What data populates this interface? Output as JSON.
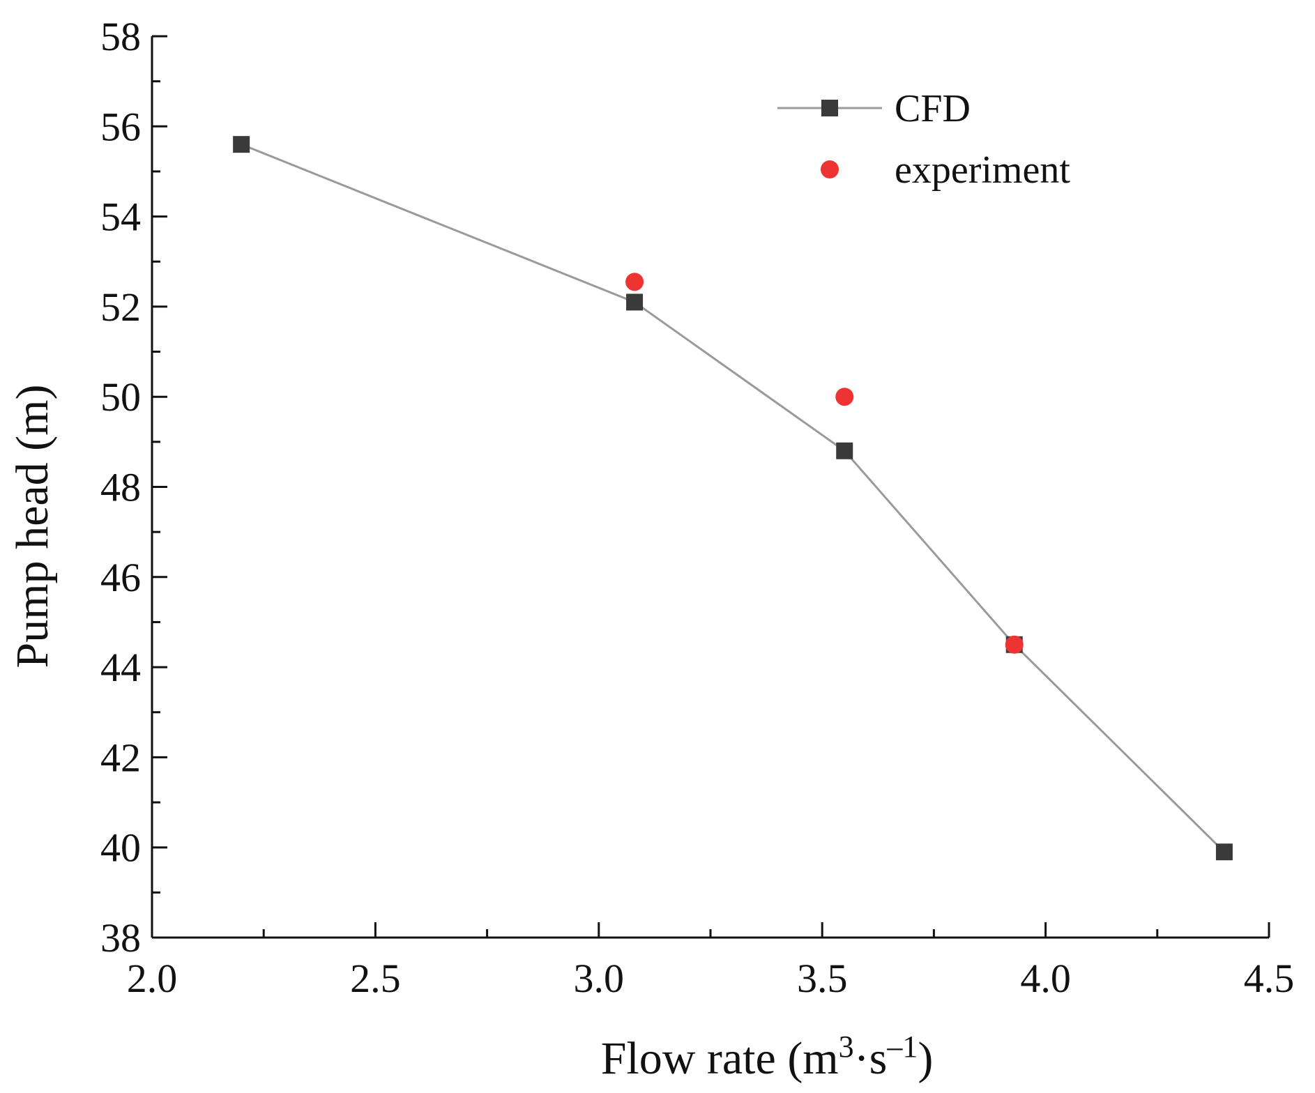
{
  "chart_data": {
    "type": "line",
    "xlabel": {
      "main": "Flow rate (m",
      "sup1": "3",
      "mid": "·s",
      "sup2": "–1",
      "end": ")"
    },
    "ylabel": "Pump head (m)",
    "xlim": [
      2.0,
      4.5
    ],
    "ylim": [
      38,
      58
    ],
    "xticks": [
      2.0,
      2.5,
      3.0,
      3.5,
      4.0,
      4.5
    ],
    "xtick_labels": [
      "2.0",
      "2.5",
      "3.0",
      "3.5",
      "4.0",
      "4.5"
    ],
    "yticks": [
      38,
      40,
      42,
      44,
      46,
      48,
      50,
      52,
      54,
      56,
      58
    ],
    "ytick_labels": [
      "38",
      "40",
      "42",
      "44",
      "46",
      "48",
      "50",
      "52",
      "54",
      "56",
      "58"
    ],
    "grid": false,
    "legend_position": "top-right",
    "series": [
      {
        "name": "CFD",
        "style": "line-square",
        "color": "#3a3a3a",
        "line_color": "#9a9a9a",
        "x": [
          2.2,
          3.08,
          3.55,
          3.93,
          4.4
        ],
        "y": [
          55.6,
          52.1,
          48.8,
          44.5,
          39.9
        ]
      },
      {
        "name": "experiment",
        "style": "circle",
        "color": "#ee3333",
        "x": [
          3.08,
          3.55,
          3.93
        ],
        "y": [
          52.55,
          50.0,
          44.5
        ]
      }
    ]
  }
}
